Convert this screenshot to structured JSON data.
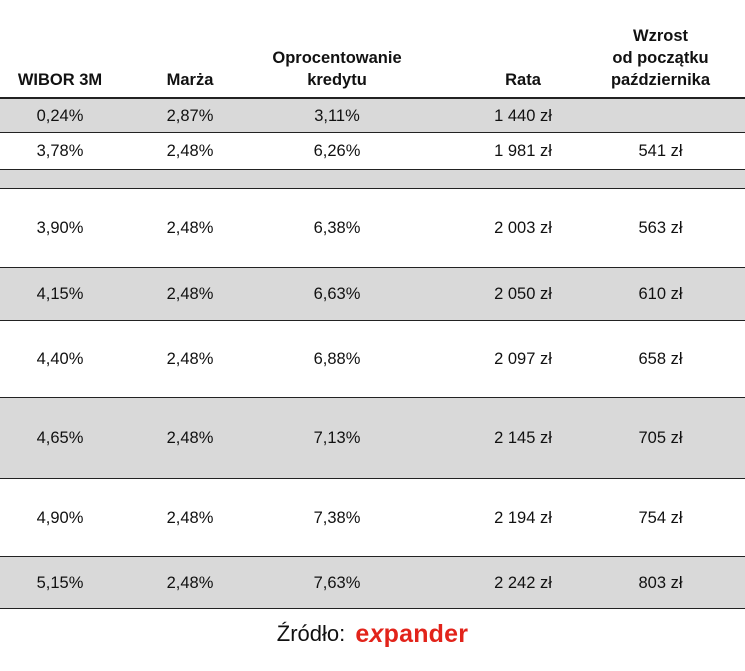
{
  "header": {
    "wibor": "WIBOR 3M",
    "marza": "Marża",
    "oprocentowanie_line1": "Oprocentowanie",
    "oprocentowanie_line2": "kredytu",
    "rata": "Rata",
    "wzrost_line1": "Wzrost",
    "wzrost_line2": "od początku",
    "wzrost_line3": "października"
  },
  "rows": [
    {
      "wibor": "0,24%",
      "marza": "2,87%",
      "oprocentowanie": "3,11%",
      "rata": "1 440 zł",
      "wzrost": ""
    },
    {
      "wibor": "3,78%",
      "marza": "2,48%",
      "oprocentowanie": "6,26%",
      "rata": "1 981 zł",
      "wzrost": "541 zł"
    },
    {
      "wibor": "3,90%",
      "marza": "2,48%",
      "oprocentowanie": "6,38%",
      "rata": "2 003 zł",
      "wzrost": "563 zł"
    },
    {
      "wibor": "4,15%",
      "marza": "2,48%",
      "oprocentowanie": "6,63%",
      "rata": "2 050 zł",
      "wzrost": "610 zł"
    },
    {
      "wibor": "4,40%",
      "marza": "2,48%",
      "oprocentowanie": "6,88%",
      "rata": "2 097 zł",
      "wzrost": "658 zł"
    },
    {
      "wibor": "4,65%",
      "marza": "2,48%",
      "oprocentowanie": "7,13%",
      "rata": "2 145 zł",
      "wzrost": "705 zł"
    },
    {
      "wibor": "4,90%",
      "marza": "2,48%",
      "oprocentowanie": "7,38%",
      "rata": "2 194 zł",
      "wzrost": "754 zł"
    },
    {
      "wibor": "5,15%",
      "marza": "2,48%",
      "oprocentowanie": "7,63%",
      "rata": "2 242 zł",
      "wzrost": "803 zł"
    }
  ],
  "source": {
    "label": "Źródło:",
    "brand_prefix": "e",
    "brand_x": "x",
    "brand_rest": "pander"
  },
  "colors": {
    "shaded_row": "#d9d9d9",
    "brand": "#e2231a"
  }
}
